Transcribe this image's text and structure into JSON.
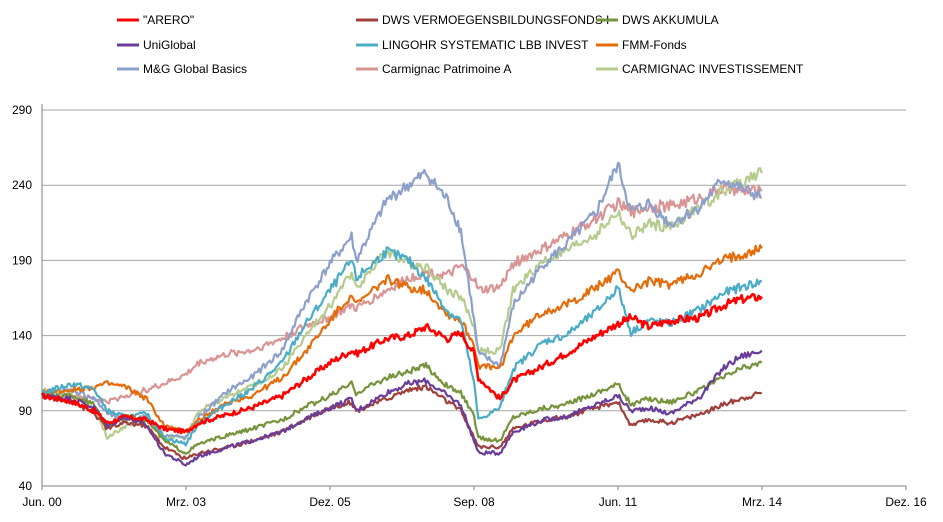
{
  "chart_data": {
    "type": "line",
    "title": "",
    "xlabel": "",
    "ylabel": "",
    "x_ticks": [
      "Jun. 00",
      "Mrz. 03",
      "Dez. 05",
      "Sep. 08",
      "Jun. 11",
      "Mrz. 14",
      "Dez. 16"
    ],
    "x_range": [
      "2000-06",
      "2016-12"
    ],
    "y_ticks": [
      40,
      90,
      140,
      190,
      240,
      290
    ],
    "ylim": [
      40,
      290
    ],
    "grid": "horizontal",
    "legend_position": "top",
    "x": [
      "2000-06",
      "2001-01",
      "2001-06",
      "2001-09",
      "2002-01",
      "2002-06",
      "2002-10",
      "2003-03",
      "2003-06",
      "2004-01",
      "2004-06",
      "2005-01",
      "2005-06",
      "2005-12",
      "2006-05",
      "2006-06",
      "2007-01",
      "2007-06",
      "2007-10",
      "2008-03",
      "2008-06",
      "2008-09",
      "2008-10",
      "2009-03",
      "2009-06",
      "2010-01",
      "2010-06",
      "2011-01",
      "2011-06",
      "2011-09",
      "2012-01",
      "2012-06",
      "2013-01",
      "2013-06",
      "2013-10",
      "2014-03"
    ],
    "series": [
      {
        "name": "\"ARERO\"",
        "color": "#ff0000",
        "values": [
          100,
          96,
          90,
          82,
          86,
          84,
          78,
          76,
          82,
          88,
          92,
          100,
          110,
          122,
          130,
          128,
          138,
          140,
          146,
          138,
          142,
          128,
          112,
          98,
          110,
          120,
          128,
          140,
          148,
          152,
          146,
          150,
          152,
          160,
          164,
          166
        ]
      },
      {
        "name": "UniGlobal",
        "color": "#6a3d9a",
        "values": [
          100,
          98,
          92,
          80,
          86,
          80,
          62,
          54,
          60,
          66,
          70,
          76,
          84,
          92,
          98,
          90,
          102,
          108,
          110,
          100,
          94,
          70,
          62,
          62,
          76,
          84,
          86,
          94,
          100,
          90,
          92,
          88,
          100,
          118,
          126,
          130
        ]
      },
      {
        "name": "M&G Global Basics",
        "color": "#8da0cb",
        "values": [
          100,
          104,
          98,
          88,
          84,
          86,
          74,
          72,
          86,
          104,
          112,
          130,
          160,
          188,
          206,
          190,
          230,
          240,
          248,
          230,
          210,
          150,
          128,
          120,
          160,
          188,
          200,
          222,
          254,
          222,
          228,
          214,
          226,
          244,
          238,
          232
        ]
      },
      {
        "name": "DWS VERMOEGENSBILDUNGSFONDS  I",
        "color": "#a0403c",
        "values": [
          100,
          96,
          88,
          78,
          82,
          80,
          66,
          58,
          62,
          66,
          70,
          76,
          84,
          92,
          96,
          90,
          98,
          104,
          106,
          96,
          90,
          72,
          66,
          66,
          78,
          84,
          86,
          92,
          96,
          80,
          84,
          82,
          88,
          94,
          98,
          102
        ]
      },
      {
        "name": "LINGOHR SYSTEMATIC  LBB INVEST",
        "color": "#4bacc6",
        "values": [
          102,
          108,
          104,
          90,
          86,
          88,
          72,
          68,
          82,
          96,
          104,
          122,
          146,
          170,
          190,
          178,
          196,
          190,
          178,
          156,
          150,
          108,
          84,
          92,
          118,
          136,
          140,
          156,
          172,
          142,
          150,
          148,
          158,
          168,
          172,
          176
        ]
      },
      {
        "name": "Carmignac Patrimoine A",
        "color": "#d99594",
        "values": [
          100,
          100,
          98,
          96,
          100,
          104,
          108,
          114,
          122,
          128,
          130,
          138,
          146,
          152,
          160,
          158,
          170,
          178,
          182,
          180,
          186,
          178,
          170,
          172,
          188,
          198,
          206,
          218,
          228,
          222,
          226,
          226,
          232,
          238,
          236,
          236
        ]
      },
      {
        "name": "DWS AKKUMULA",
        "color": "#77933c",
        "values": [
          100,
          100,
          94,
          80,
          86,
          84,
          70,
          62,
          68,
          74,
          78,
          84,
          92,
          100,
          108,
          102,
          112,
          116,
          120,
          106,
          102,
          86,
          72,
          70,
          86,
          92,
          94,
          102,
          108,
          94,
          98,
          96,
          104,
          112,
          118,
          122
        ]
      },
      {
        "name": "FMM-Fonds",
        "color": "#e46c0a",
        "values": [
          102,
          104,
          106,
          108,
          106,
          98,
          80,
          76,
          84,
          96,
          100,
          112,
          128,
          150,
          168,
          160,
          178,
          172,
          170,
          154,
          150,
          134,
          120,
          118,
          140,
          156,
          160,
          172,
          182,
          170,
          176,
          174,
          182,
          190,
          194,
          198
        ]
      },
      {
        "name": "CARMIGNAC INVESTISSEMENT",
        "color": "#b5cc8e",
        "values": [
          104,
          100,
          92,
          72,
          80,
          84,
          72,
          72,
          90,
          100,
          106,
          118,
          138,
          160,
          182,
          172,
          196,
          188,
          186,
          170,
          166,
          146,
          130,
          130,
          170,
          190,
          196,
          208,
          222,
          206,
          214,
          212,
          226,
          236,
          242,
          248
        ]
      }
    ]
  }
}
